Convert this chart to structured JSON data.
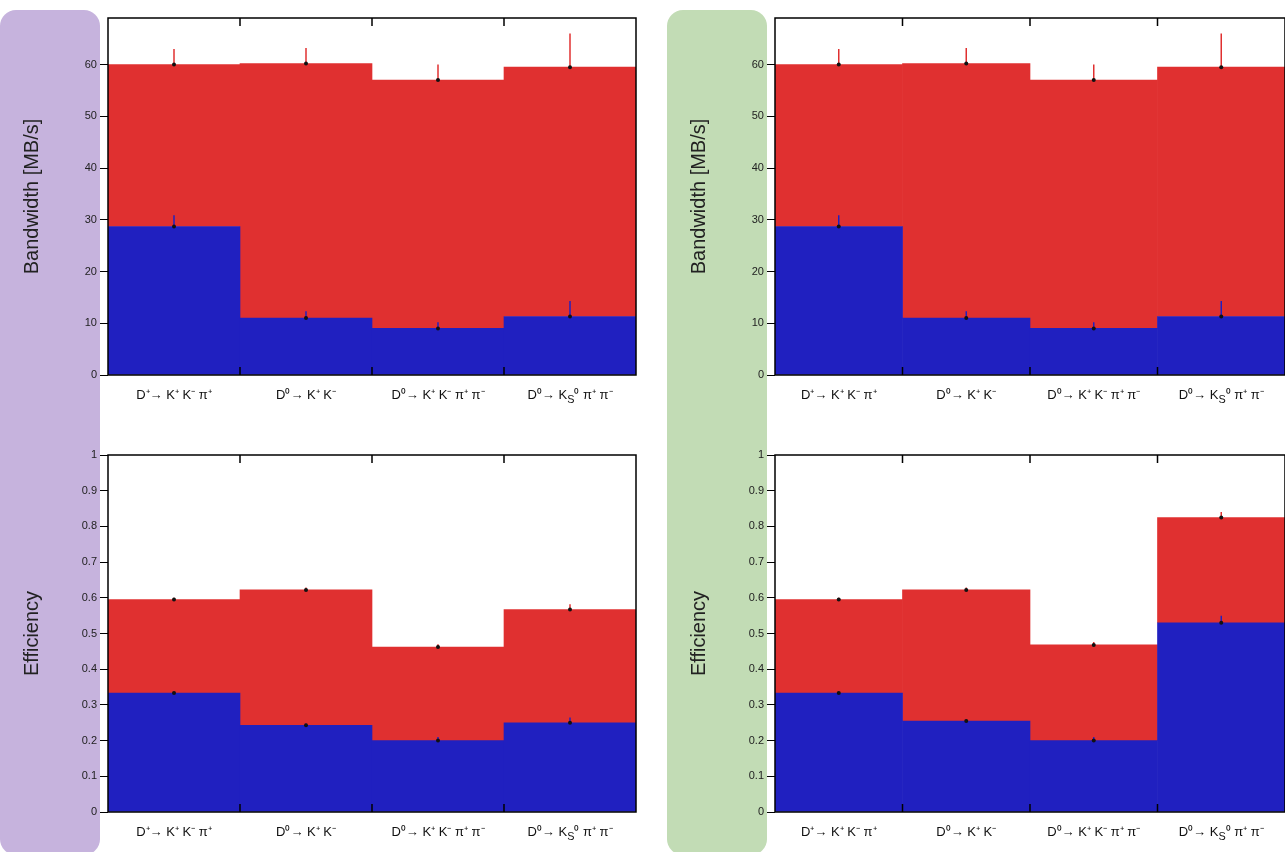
{
  "chart_data": [
    {
      "type": "bar",
      "stacked": true,
      "ylabel": "Bandwidth [MB/s]",
      "categories": [
        "D⁺→ K⁺ K⁻ π⁺",
        "D⁰→ K⁺ K⁻",
        "D⁰→ K⁺ K⁻ π⁺ π⁻",
        "D⁰→ K$_{S}$⁰ π⁺ π⁻"
      ],
      "ylim": [
        0,
        69
      ],
      "yticks": [
        0,
        10,
        20,
        30,
        40,
        50,
        60
      ],
      "series": [
        {
          "color": "#2020c0",
          "values": [
            28.7,
            11,
            9,
            11.3
          ],
          "errors": [
            2.2,
            1.3,
            1.2,
            3
          ]
        },
        {
          "color": "#e03030",
          "values": [
            31.3,
            49.2,
            48,
            48.2
          ],
          "errors": [
            3,
            3,
            3,
            6.5
          ]
        }
      ]
    },
    {
      "type": "bar",
      "stacked": true,
      "ylabel": "Bandwidth [MB/s]",
      "categories": [
        "D⁺→ K⁺ K⁻ π⁺",
        "D⁰→ K⁺ K⁻",
        "D⁰→ K⁺ K⁻ π⁺ π⁻",
        "D⁰→ K$_{S}$⁰ π⁺ π⁻"
      ],
      "ylim": [
        0,
        69
      ],
      "yticks": [
        0,
        10,
        20,
        30,
        40,
        50,
        60
      ],
      "series": [
        {
          "color": "#2020c0",
          "values": [
            28.7,
            11,
            9,
            11.3
          ],
          "errors": [
            2.2,
            1.3,
            1.2,
            3
          ]
        },
        {
          "color": "#e03030",
          "values": [
            31.3,
            49.2,
            48,
            48.2
          ],
          "errors": [
            3,
            3,
            3,
            6.5
          ]
        }
      ]
    },
    {
      "type": "bar",
      "stacked": true,
      "ylabel": "Efficiency",
      "categories": [
        "D⁺→ K⁺ K⁻ π⁺",
        "D⁰→ K⁺ K⁻",
        "D⁰→ K⁺ K⁻ π⁺ π⁻",
        "D⁰→ K$_{S}$⁰ π⁺ π⁻"
      ],
      "ylim": [
        0,
        1
      ],
      "yticks": [
        0,
        0.1,
        0.2,
        0.3,
        0.4,
        0.5,
        0.6,
        0.7,
        0.8,
        0.9,
        1
      ],
      "series": [
        {
          "color": "#2020c0",
          "values": [
            0.333,
            0.243,
            0.2,
            0.25
          ],
          "errors": [
            0.004,
            0.005,
            0.01,
            0.015
          ]
        },
        {
          "color": "#e03030",
          "values": [
            0.262,
            0.379,
            0.262,
            0.317
          ],
          "errors": [
            0.005,
            0.007,
            0.008,
            0.015
          ]
        }
      ]
    },
    {
      "type": "bar",
      "stacked": true,
      "ylabel": "Efficiency",
      "categories": [
        "D⁺→ K⁺ K⁻ π⁺",
        "D⁰→ K⁺ K⁻",
        "D⁰→ K⁺ K⁻ π⁺ π⁻",
        "D⁰→ K$_{S}$⁰ π⁺ π⁻"
      ],
      "ylim": [
        0,
        1
      ],
      "yticks": [
        0,
        0.1,
        0.2,
        0.3,
        0.4,
        0.5,
        0.6,
        0.7,
        0.8,
        0.9,
        1
      ],
      "series": [
        {
          "color": "#2020c0",
          "values": [
            0.333,
            0.255,
            0.2,
            0.53
          ],
          "errors": [
            0.004,
            0.004,
            0.01,
            0.02
          ]
        },
        {
          "color": "#e03030",
          "values": [
            0.262,
            0.367,
            0.268,
            0.295
          ],
          "errors": [
            0.005,
            0.007,
            0.008,
            0.015
          ]
        }
      ]
    }
  ]
}
